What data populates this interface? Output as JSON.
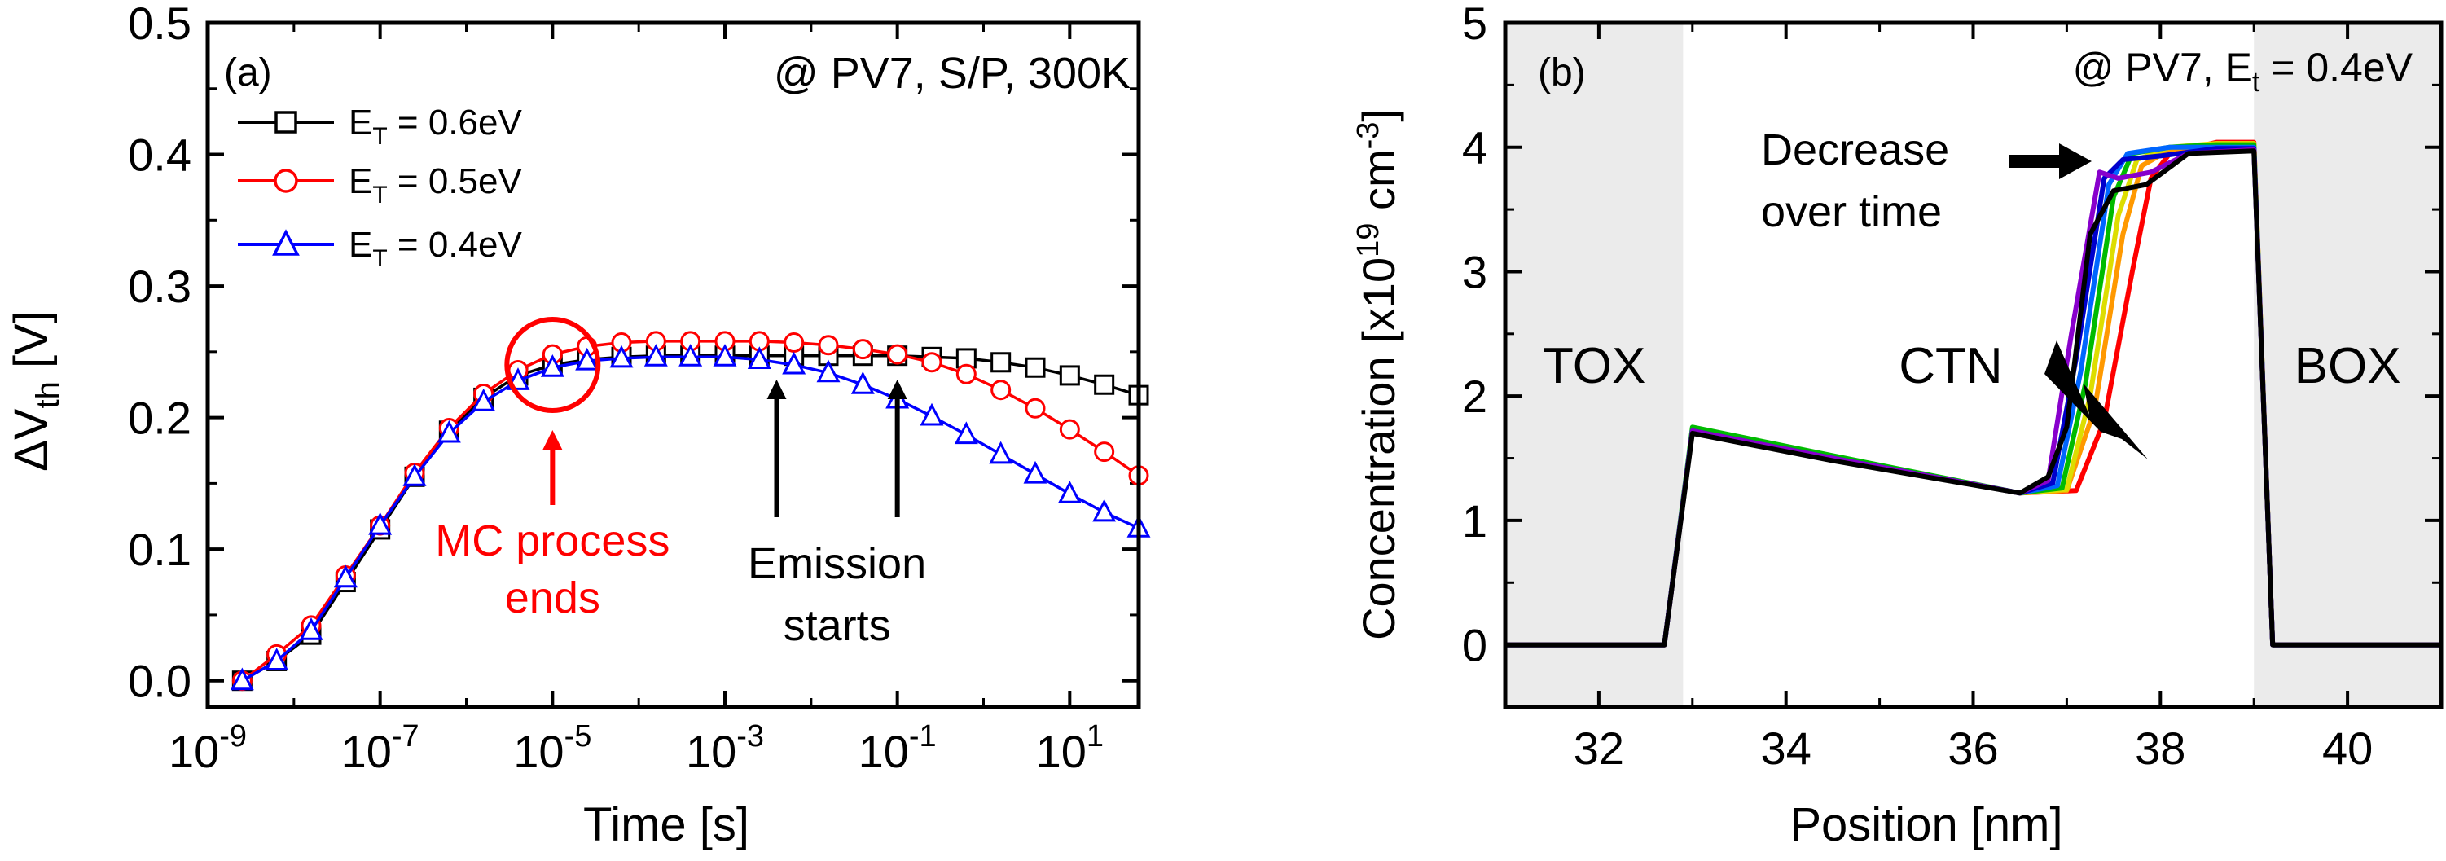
{
  "chart_data": [
    {
      "type": "line",
      "panel_label": "(a)",
      "annotation": "@ PV7, S/P, 300K",
      "xlabel": "Time [s]",
      "ylabel_main": "ΔV",
      "ylabel_sub": "th",
      "ylabel_unit": " [V]",
      "x_scale": "log",
      "xlim_log10": [
        -9,
        1.8
      ],
      "ylim": [
        -0.02,
        0.5
      ],
      "yticks": [
        "0.0",
        "0.1",
        "0.2",
        "0.3",
        "0.4",
        "0.5"
      ],
      "xticks": [
        {
          "base": "10",
          "exp": "-9",
          "e": -9
        },
        {
          "base": "10",
          "exp": "-7",
          "e": -7
        },
        {
          "base": "10",
          "exp": "-5",
          "e": -5
        },
        {
          "base": "10",
          "exp": "-3",
          "e": -3
        },
        {
          "base": "10",
          "exp": "-1",
          "e": -1
        },
        {
          "base": "10",
          "exp": "1",
          "e": 1
        }
      ],
      "legend_placement": "top-left",
      "series": [
        {
          "legend_pre": "E",
          "legend_sub": "T",
          "legend_post": " = 0.6eV",
          "color": "#000000",
          "marker": "square",
          "points": [
            [
              -8.6,
              0.0
            ],
            [
              -8.2,
              0.015
            ],
            [
              -7.8,
              0.035
            ],
            [
              -7.4,
              0.075
            ],
            [
              -7.0,
              0.115
            ],
            [
              -6.6,
              0.155
            ],
            [
              -6.2,
              0.19
            ],
            [
              -5.8,
              0.215
            ],
            [
              -5.4,
              0.232
            ],
            [
              -5.0,
              0.24
            ],
            [
              -4.6,
              0.244
            ],
            [
              -4.2,
              0.246
            ],
            [
              -3.8,
              0.247
            ],
            [
              -3.4,
              0.247
            ],
            [
              -3.0,
              0.247
            ],
            [
              -2.6,
              0.247
            ],
            [
              -2.2,
              0.247
            ],
            [
              -1.8,
              0.247
            ],
            [
              -1.4,
              0.247
            ],
            [
              -1.0,
              0.247
            ],
            [
              -0.6,
              0.246
            ],
            [
              -0.2,
              0.245
            ],
            [
              0.2,
              0.242
            ],
            [
              0.6,
              0.238
            ],
            [
              1.0,
              0.232
            ],
            [
              1.4,
              0.225
            ],
            [
              1.8,
              0.217
            ]
          ]
        },
        {
          "legend_pre": "E",
          "legend_sub": "T",
          "legend_post": " = 0.5eV",
          "color": "#ff0000",
          "marker": "circle",
          "points": [
            [
              -8.6,
              0.0
            ],
            [
              -8.2,
              0.02
            ],
            [
              -7.8,
              0.042
            ],
            [
              -7.4,
              0.08
            ],
            [
              -7.0,
              0.118
            ],
            [
              -6.6,
              0.158
            ],
            [
              -6.2,
              0.192
            ],
            [
              -5.8,
              0.218
            ],
            [
              -5.4,
              0.236
            ],
            [
              -5.0,
              0.248
            ],
            [
              -4.6,
              0.254
            ],
            [
              -4.2,
              0.257
            ],
            [
              -3.8,
              0.258
            ],
            [
              -3.4,
              0.258
            ],
            [
              -3.0,
              0.258
            ],
            [
              -2.6,
              0.258
            ],
            [
              -2.2,
              0.257
            ],
            [
              -1.8,
              0.255
            ],
            [
              -1.4,
              0.252
            ],
            [
              -1.0,
              0.248
            ],
            [
              -0.6,
              0.242
            ],
            [
              -0.2,
              0.233
            ],
            [
              0.2,
              0.221
            ],
            [
              0.6,
              0.207
            ],
            [
              1.0,
              0.191
            ],
            [
              1.4,
              0.174
            ],
            [
              1.8,
              0.156
            ]
          ]
        },
        {
          "legend_pre": "E",
          "legend_sub": "T",
          "legend_post": " = 0.4eV",
          "color": "#0000ff",
          "marker": "triangle",
          "points": [
            [
              -8.6,
              0.0
            ],
            [
              -8.2,
              0.015
            ],
            [
              -7.8,
              0.038
            ],
            [
              -7.4,
              0.078
            ],
            [
              -7.0,
              0.118
            ],
            [
              -6.6,
              0.155
            ],
            [
              -6.2,
              0.188
            ],
            [
              -5.8,
              0.212
            ],
            [
              -5.4,
              0.228
            ],
            [
              -5.0,
              0.238
            ],
            [
              -4.6,
              0.243
            ],
            [
              -4.2,
              0.245
            ],
            [
              -3.8,
              0.246
            ],
            [
              -3.4,
              0.246
            ],
            [
              -3.0,
              0.246
            ],
            [
              -2.6,
              0.244
            ],
            [
              -2.2,
              0.24
            ],
            [
              -1.8,
              0.234
            ],
            [
              -1.4,
              0.225
            ],
            [
              -1.0,
              0.214
            ],
            [
              -0.6,
              0.201
            ],
            [
              -0.2,
              0.187
            ],
            [
              0.2,
              0.172
            ],
            [
              0.6,
              0.157
            ],
            [
              1.0,
              0.142
            ],
            [
              1.4,
              0.128
            ],
            [
              1.8,
              0.116
            ]
          ]
        }
      ],
      "annotations": {
        "mc_line1": "MC process",
        "mc_line2": "ends",
        "mc_color": "#ff0000",
        "emission_line1": "Emission",
        "emission_line2": "starts",
        "circle_center": [
          -5.0,
          0.24
        ],
        "mc_arrow_x": -5.0,
        "emission_arrow_x": [
          -2.4,
          -1.0
        ]
      }
    },
    {
      "type": "line",
      "panel_label": "(b)",
      "annotation_pre": "@ PV7, E",
      "annotation_sub": "t",
      "annotation_post": " = 0.4eV",
      "xlabel": "Position [nm]",
      "ylabel_pre": "Concentration [x10",
      "ylabel_sup1": "19",
      "ylabel_mid": " cm",
      "ylabel_sup2": "-3",
      "ylabel_post": "]",
      "xlim": [
        31,
        41
      ],
      "ylim": [
        -0.5,
        5
      ],
      "xticks": [
        "32",
        "34",
        "36",
        "38",
        "40"
      ],
      "yticks": [
        "0",
        "1",
        "2",
        "3",
        "4",
        "5"
      ],
      "shaded_regions": [
        {
          "label": "TOX",
          "x": [
            31,
            32.9
          ],
          "color": "#ebebeb"
        },
        {
          "label": "BOX",
          "x": [
            39.0,
            41
          ],
          "color": "#ebebeb"
        }
      ],
      "text_labels": {
        "ctn": "CTN",
        "decrease_line1": "Decrease",
        "decrease_line2": "over time"
      },
      "series": [
        {
          "color": "#ff0000",
          "points": [
            [
              31,
              0
            ],
            [
              32.7,
              0
            ],
            [
              33.0,
              1.72
            ],
            [
              34.5,
              1.5
            ],
            [
              36.5,
              1.22
            ],
            [
              37.1,
              1.24
            ],
            [
              37.4,
              1.8
            ],
            [
              37.7,
              3.0
            ],
            [
              37.9,
              3.75
            ],
            [
              38.1,
              3.95
            ],
            [
              38.6,
              4.04
            ],
            [
              39.0,
              4.04
            ],
            [
              39.2,
              0
            ],
            [
              41,
              0
            ]
          ]
        },
        {
          "color": "#ff9900",
          "points": [
            [
              31,
              0
            ],
            [
              32.7,
              0
            ],
            [
              33.0,
              1.72
            ],
            [
              34.5,
              1.5
            ],
            [
              36.5,
              1.22
            ],
            [
              37.0,
              1.24
            ],
            [
              37.3,
              1.9
            ],
            [
              37.6,
              3.3
            ],
            [
              37.8,
              3.85
            ],
            [
              38.1,
              3.98
            ],
            [
              38.6,
              4.03
            ],
            [
              39.0,
              4.03
            ],
            [
              39.2,
              0
            ],
            [
              41,
              0
            ]
          ]
        },
        {
          "color": "#dddd00",
          "points": [
            [
              31,
              0
            ],
            [
              32.7,
              0
            ],
            [
              33.0,
              1.72
            ],
            [
              34.5,
              1.5
            ],
            [
              36.5,
              1.22
            ],
            [
              37.0,
              1.25
            ],
            [
              37.25,
              2.0
            ],
            [
              37.55,
              3.45
            ],
            [
              37.75,
              3.9
            ],
            [
              38.1,
              4.0
            ],
            [
              38.6,
              4.03
            ],
            [
              39.0,
              4.03
            ],
            [
              39.2,
              0
            ],
            [
              41,
              0
            ]
          ]
        },
        {
          "color": "#00bb00",
          "points": [
            [
              31,
              0
            ],
            [
              32.7,
              0
            ],
            [
              33.0,
              1.75
            ],
            [
              34.5,
              1.52
            ],
            [
              36.5,
              1.22
            ],
            [
              36.95,
              1.26
            ],
            [
              37.2,
              2.1
            ],
            [
              37.5,
              3.6
            ],
            [
              37.7,
              3.95
            ],
            [
              38.1,
              4.0
            ],
            [
              38.6,
              4.02
            ],
            [
              39.0,
              4.02
            ],
            [
              39.2,
              0
            ],
            [
              41,
              0
            ]
          ]
        },
        {
          "color": "#0066ff",
          "points": [
            [
              31,
              0
            ],
            [
              32.7,
              0
            ],
            [
              33.0,
              1.72
            ],
            [
              34.5,
              1.5
            ],
            [
              36.5,
              1.22
            ],
            [
              36.9,
              1.28
            ],
            [
              37.15,
              2.2
            ],
            [
              37.45,
              3.7
            ],
            [
              37.65,
              3.95
            ],
            [
              38.1,
              4.0
            ],
            [
              38.6,
              4.0
            ],
            [
              39.0,
              4.0
            ],
            [
              39.2,
              0
            ],
            [
              41,
              0
            ]
          ]
        },
        {
          "color": "#0000cc",
          "points": [
            [
              31,
              0
            ],
            [
              32.7,
              0
            ],
            [
              33.0,
              1.72
            ],
            [
              34.5,
              1.5
            ],
            [
              36.5,
              1.22
            ],
            [
              36.85,
              1.3
            ],
            [
              37.1,
              2.3
            ],
            [
              37.4,
              3.75
            ],
            [
              37.6,
              3.9
            ],
            [
              38.0,
              3.93
            ],
            [
              38.6,
              3.99
            ],
            [
              39.0,
              3.99
            ],
            [
              39.2,
              0
            ],
            [
              41,
              0
            ]
          ]
        },
        {
          "color": "#8800cc",
          "points": [
            [
              31,
              0
            ],
            [
              32.7,
              0
            ],
            [
              33.0,
              1.72
            ],
            [
              34.5,
              1.5
            ],
            [
              36.5,
              1.22
            ],
            [
              36.8,
              1.32
            ],
            [
              37.05,
              2.5
            ],
            [
              37.35,
              3.8
            ],
            [
              37.55,
              3.75
            ],
            [
              37.9,
              3.8
            ],
            [
              38.3,
              3.95
            ],
            [
              39.0,
              3.98
            ],
            [
              39.2,
              0
            ],
            [
              41,
              0
            ]
          ]
        },
        {
          "color": "#000000",
          "points": [
            [
              31,
              0
            ],
            [
              32.7,
              0
            ],
            [
              33.0,
              1.7
            ],
            [
              34.5,
              1.48
            ],
            [
              36.5,
              1.22
            ],
            [
              36.8,
              1.35
            ],
            [
              37.0,
              1.75
            ],
            [
              37.25,
              3.3
            ],
            [
              37.5,
              3.65
            ],
            [
              37.85,
              3.7
            ],
            [
              38.3,
              3.95
            ],
            [
              39.0,
              3.97
            ],
            [
              39.2,
              0
            ],
            [
              41,
              0
            ]
          ]
        }
      ]
    }
  ]
}
